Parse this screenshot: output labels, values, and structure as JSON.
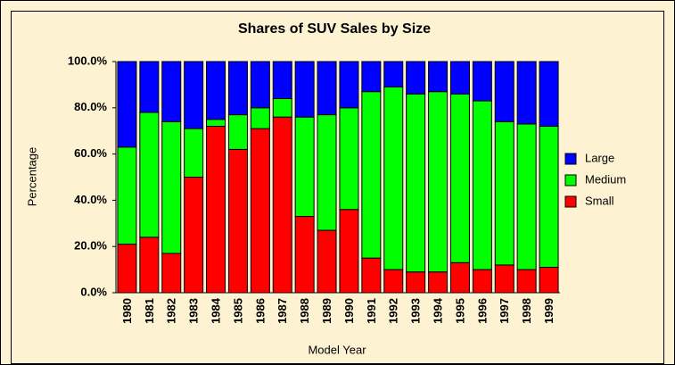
{
  "chart_data": {
    "type": "bar",
    "stacked": true,
    "title": "Shares of SUV Sales by Size",
    "x_label": "Model Year",
    "y_label": "Percentage",
    "categories": [
      "1980",
      "1981",
      "1982",
      "1983",
      "1984",
      "1985",
      "1986",
      "1987",
      "1988",
      "1989",
      "1990",
      "1991",
      "1992",
      "1993",
      "1994",
      "1995",
      "1996",
      "1997",
      "1998",
      "1999"
    ],
    "series": [
      {
        "name": "Large",
        "color": "#0000ff",
        "values": [
          37,
          22,
          26,
          29,
          25,
          23,
          20,
          16,
          24,
          23,
          20,
          13,
          11,
          14,
          13,
          14,
          17,
          26,
          27,
          28
        ]
      },
      {
        "name": "Medium",
        "color": "#00ff00",
        "values": [
          42,
          54,
          57,
          21,
          3,
          15,
          9,
          8,
          43,
          50,
          44,
          72,
          79,
          77,
          78,
          73,
          73,
          62,
          63,
          61
        ]
      },
      {
        "name": "Small",
        "color": "#ff0000",
        "values": [
          21,
          24,
          17,
          50,
          72,
          62,
          71,
          76,
          33,
          27,
          36,
          15,
          10,
          9,
          9,
          13,
          10,
          12,
          10,
          11
        ]
      }
    ],
    "ylim": [
      0,
      100
    ],
    "yticks": [
      {
        "value": 0,
        "label": "0.0%"
      },
      {
        "value": 20,
        "label": "20.0%"
      },
      {
        "value": 40,
        "label": "40.0%"
      },
      {
        "value": 60,
        "label": "60.0%"
      },
      {
        "value": 80,
        "label": "80.0%"
      },
      {
        "value": 100,
        "label": "100.0%"
      }
    ],
    "grid": false,
    "legend": "right"
  }
}
